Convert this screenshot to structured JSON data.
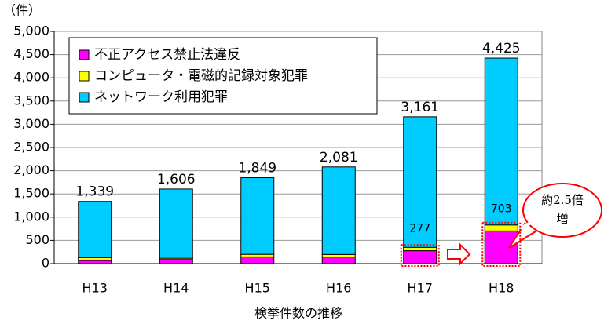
{
  "chart_data": {
    "type": "stacked-bar",
    "y_axis_label": "（件）",
    "x_axis_label": "検挙件数の推移",
    "categories": [
      "H13",
      "H14",
      "H15",
      "H16",
      "H17",
      "H18"
    ],
    "series": [
      {
        "name": "不正アクセス禁止法違反",
        "color": "#ff00ff",
        "values": [
          67,
          105,
          145,
          142,
          277,
          703
        ],
        "value_labels": [
          null,
          null,
          null,
          null,
          "277",
          "703"
        ]
      },
      {
        "name": "コンピュータ・電磁的記録対象犯罪",
        "color": "#ffff00",
        "values": [
          63,
          30,
          55,
          55,
          73,
          129
        ]
      },
      {
        "name": "ネットワーク利用犯罪",
        "color": "#00ccff",
        "values": [
          1209,
          1471,
          1649,
          1884,
          2811,
          3593
        ]
      }
    ],
    "totals": [
      1339,
      1606,
      1849,
      2081,
      3161,
      4425
    ],
    "total_labels": [
      "1,339",
      "1,606",
      "1,849",
      "2,081",
      "3,161",
      "4,425"
    ],
    "annotation": [
      "約2.5倍",
      "増"
    ],
    "ylim": [
      0,
      5000
    ],
    "yticks": [
      0,
      500,
      {
        "value": 1000,
        "label": "1,000"
      },
      {
        "value": 1500,
        "label": "1,500"
      },
      {
        "value": 2000,
        "label": "2,000"
      },
      {
        "value": 2500,
        "label": "2,500"
      },
      {
        "value": 3000,
        "label": "3,000"
      },
      {
        "value": 3500,
        "label": "3,500"
      },
      {
        "value": 4000,
        "label": "4,000"
      },
      {
        "value": 4500,
        "label": "4,500"
      },
      {
        "value": 5000,
        "label": "5,000"
      }
    ],
    "grid": true
  }
}
